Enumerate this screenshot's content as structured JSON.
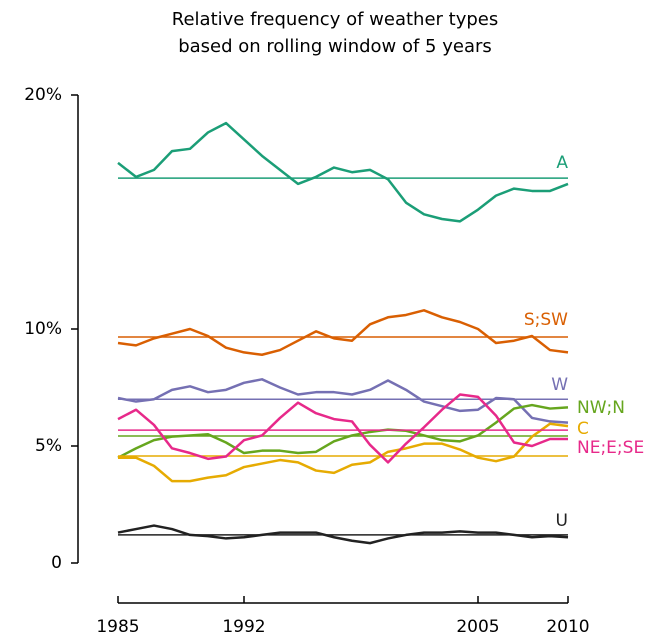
{
  "chart_data": {
    "type": "line",
    "title": [
      "Relative frequency of weather types",
      "based on rolling window of 5 years"
    ],
    "x": [
      1985,
      1986,
      1987,
      1988,
      1989,
      1990,
      1991,
      1992,
      1993,
      1994,
      1995,
      1996,
      1997,
      1998,
      1999,
      2000,
      2001,
      2002,
      2003,
      2004,
      2005,
      2006,
      2007,
      2008,
      2009,
      2010
    ],
    "xlim": [
      1985,
      2010
    ],
    "xticks": [
      1985,
      1992,
      2005,
      2010
    ],
    "ylim": [
      0,
      20
    ],
    "yticks": [
      0,
      {
        "value": 5,
        "label": "5%"
      },
      {
        "value": 10,
        "label": "10%"
      },
      {
        "value": 20,
        "label": "20%"
      }
    ],
    "series": [
      {
        "name": "A",
        "color": "#1b9e77",
        "mean": 16.45,
        "values": [
          17.1,
          16.5,
          16.8,
          17.6,
          17.7,
          18.4,
          18.8,
          18.1,
          17.4,
          16.8,
          16.2,
          16.5,
          16.9,
          16.7,
          16.8,
          16.4,
          15.4,
          14.9,
          14.7,
          14.6,
          15.1,
          15.7,
          16.0,
          15.9,
          15.9,
          16.2
        ]
      },
      {
        "name": "S;SW",
        "color": "#d95f02",
        "mean": 9.66,
        "values": [
          9.4,
          9.3,
          9.6,
          9.8,
          10.0,
          9.7,
          9.2,
          9.0,
          8.9,
          9.1,
          9.5,
          9.9,
          9.6,
          9.5,
          10.2,
          10.5,
          10.6,
          10.8,
          10.5,
          10.3,
          10.0,
          9.4,
          9.5,
          9.7,
          9.1,
          9.0
        ]
      },
      {
        "name": "W",
        "color": "#7570b3",
        "mean": 7.0,
        "values": [
          7.05,
          6.9,
          7.0,
          7.4,
          7.55,
          7.3,
          7.4,
          7.7,
          7.85,
          7.5,
          7.2,
          7.3,
          7.3,
          7.2,
          7.4,
          7.8,
          7.4,
          6.9,
          6.7,
          6.5,
          6.55,
          7.05,
          7.0,
          6.2,
          6.05,
          6.0
        ]
      },
      {
        "name": "NW;N",
        "color": "#66a61e",
        "mean": 5.43,
        "values": [
          4.5,
          4.9,
          5.25,
          5.4,
          5.45,
          5.5,
          5.15,
          4.7,
          4.8,
          4.8,
          4.7,
          4.75,
          5.2,
          5.45,
          5.6,
          5.7,
          5.65,
          5.45,
          5.25,
          5.2,
          5.45,
          6.0,
          6.6,
          6.75,
          6.6,
          6.65
        ]
      },
      {
        "name": "C",
        "color": "#e6ab02",
        "mean": 4.57,
        "values": [
          4.5,
          4.5,
          4.15,
          3.5,
          3.5,
          3.65,
          3.75,
          4.1,
          4.25,
          4.4,
          4.3,
          3.95,
          3.85,
          4.2,
          4.3,
          4.75,
          4.9,
          5.1,
          5.1,
          4.85,
          4.5,
          4.35,
          4.55,
          5.4,
          5.95,
          5.85
        ]
      },
      {
        "name": "NE;E;SE",
        "color": "#e7298a",
        "mean": 5.68,
        "values": [
          6.15,
          6.55,
          5.9,
          4.9,
          4.7,
          4.45,
          4.55,
          5.25,
          5.45,
          6.2,
          6.85,
          6.4,
          6.15,
          6.05,
          5.05,
          4.3,
          5.1,
          5.8,
          6.55,
          7.2,
          7.1,
          6.3,
          5.15,
          5.0,
          5.3,
          5.3
        ]
      },
      {
        "name": "U",
        "color": "#222222",
        "mean": 1.2,
        "values": [
          1.3,
          1.45,
          1.6,
          1.45,
          1.2,
          1.15,
          1.05,
          1.1,
          1.2,
          1.3,
          1.3,
          1.3,
          1.1,
          0.95,
          0.85,
          1.05,
          1.2,
          1.3,
          1.3,
          1.35,
          1.3,
          1.3,
          1.2,
          1.1,
          1.15,
          1.1
        ]
      }
    ]
  }
}
